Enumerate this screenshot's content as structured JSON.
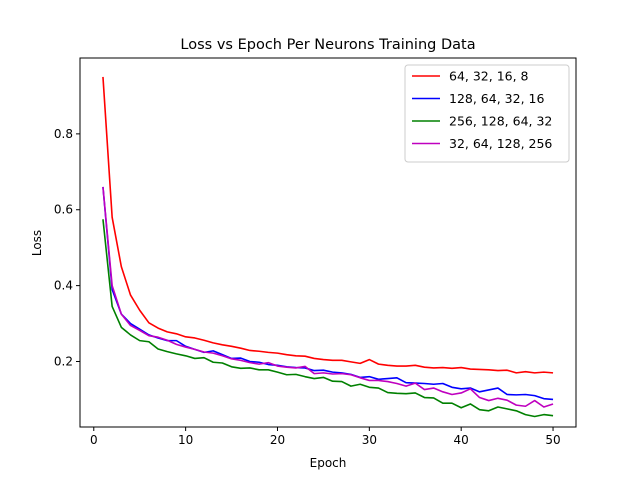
{
  "chart_data": {
    "type": "line",
    "title": "Loss vs Epoch Per Neurons Training Data",
    "xlabel": "Epoch",
    "ylabel": "Loss",
    "xlim": [
      -1.5,
      52.5
    ],
    "ylim": [
      0.0273,
      1.0
    ],
    "x_ticks": [
      0,
      10,
      20,
      30,
      40,
      50
    ],
    "y_ticks": [
      0.2,
      0.4,
      0.6,
      0.8
    ],
    "grid": false,
    "legend_position": "top-right",
    "x": [
      1,
      2,
      3,
      4,
      5,
      6,
      7,
      8,
      9,
      10,
      11,
      12,
      13,
      14,
      15,
      16,
      17,
      18,
      19,
      20,
      21,
      22,
      23,
      24,
      25,
      26,
      27,
      28,
      29,
      30,
      31,
      32,
      33,
      34,
      35,
      36,
      37,
      38,
      39,
      40,
      41,
      42,
      43,
      44,
      45,
      46,
      47,
      48,
      49,
      50
    ],
    "series": [
      {
        "name": "64, 32, 16, 8",
        "color": "#ff0000",
        "values": [
          0.95,
          0.58,
          0.45,
          0.375,
          0.335,
          0.302,
          0.288,
          0.278,
          0.273,
          0.265,
          0.262,
          0.256,
          0.249,
          0.244,
          0.24,
          0.235,
          0.229,
          0.227,
          0.224,
          0.222,
          0.218,
          0.215,
          0.214,
          0.208,
          0.205,
          0.203,
          0.203,
          0.199,
          0.195,
          0.205,
          0.193,
          0.19,
          0.188,
          0.188,
          0.19,
          0.185,
          0.183,
          0.184,
          0.182,
          0.184,
          0.18,
          0.179,
          0.178,
          0.176,
          0.177,
          0.17,
          0.173,
          0.17,
          0.172,
          0.17
        ]
      },
      {
        "name": "128, 64, 32, 16",
        "color": "#0000ff",
        "values": [
          0.66,
          0.39,
          0.325,
          0.3,
          0.285,
          0.27,
          0.262,
          0.255,
          0.255,
          0.24,
          0.232,
          0.224,
          0.228,
          0.218,
          0.208,
          0.209,
          0.2,
          0.198,
          0.192,
          0.19,
          0.186,
          0.184,
          0.183,
          0.176,
          0.177,
          0.172,
          0.17,
          0.166,
          0.158,
          0.16,
          0.153,
          0.155,
          0.157,
          0.144,
          0.143,
          0.142,
          0.14,
          0.142,
          0.132,
          0.128,
          0.13,
          0.12,
          0.125,
          0.13,
          0.113,
          0.112,
          0.113,
          0.11,
          0.102,
          0.1
        ]
      },
      {
        "name": "256, 128, 64, 32",
        "color": "#008000",
        "values": [
          0.575,
          0.345,
          0.29,
          0.27,
          0.255,
          0.252,
          0.233,
          0.226,
          0.22,
          0.215,
          0.208,
          0.21,
          0.198,
          0.196,
          0.186,
          0.182,
          0.183,
          0.178,
          0.178,
          0.172,
          0.165,
          0.166,
          0.16,
          0.155,
          0.158,
          0.148,
          0.147,
          0.135,
          0.14,
          0.132,
          0.13,
          0.118,
          0.116,
          0.115,
          0.117,
          0.105,
          0.104,
          0.09,
          0.09,
          0.078,
          0.088,
          0.073,
          0.07,
          0.08,
          0.075,
          0.07,
          0.06,
          0.055,
          0.06,
          0.057
        ]
      },
      {
        "name": "32, 64, 128, 256",
        "color": "#bf00bf",
        "values": [
          0.66,
          0.4,
          0.325,
          0.295,
          0.282,
          0.268,
          0.264,
          0.256,
          0.245,
          0.238,
          0.232,
          0.225,
          0.222,
          0.215,
          0.207,
          0.203,
          0.197,
          0.193,
          0.197,
          0.188,
          0.185,
          0.183,
          0.187,
          0.168,
          0.17,
          0.167,
          0.168,
          0.165,
          0.157,
          0.15,
          0.15,
          0.147,
          0.142,
          0.135,
          0.143,
          0.126,
          0.13,
          0.12,
          0.113,
          0.117,
          0.128,
          0.105,
          0.097,
          0.103,
          0.098,
          0.085,
          0.082,
          0.097,
          0.08,
          0.088
        ]
      }
    ]
  }
}
